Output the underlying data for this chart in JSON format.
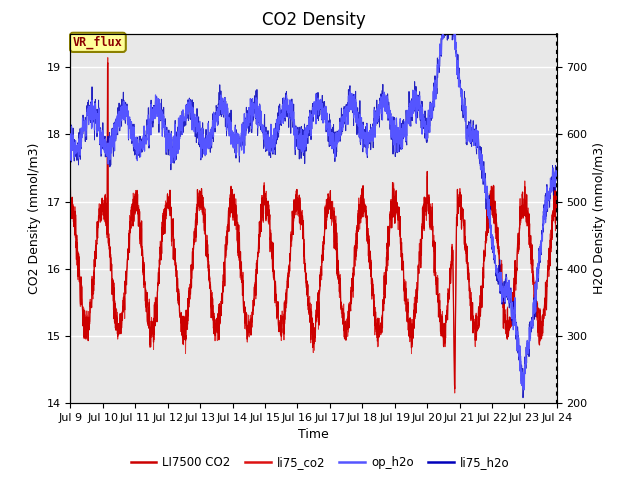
{
  "title": "CO2 Density",
  "xlabel": "Time",
  "ylabel_left": "CO2 Density (mmol/m3)",
  "ylabel_right": "H2O Density (mmol/m3)",
  "ylim_left": [
    14.0,
    19.5
  ],
  "ylim_right": [
    200,
    750
  ],
  "plot_bg_color": "#e8e8e8",
  "annotation_text": "VR_flux",
  "legend_labels": [
    "LI7500 CO2",
    "li75_co2",
    "op_h2o",
    "li75_h2o"
  ],
  "co2_color": "#cc0000",
  "h2o_color_op": "#5555ff",
  "h2o_color_li": "#0000bb",
  "x_tick_days": [
    9,
    10,
    11,
    12,
    13,
    14,
    15,
    16,
    17,
    18,
    19,
    20,
    21,
    22,
    23,
    24
  ],
  "x_tick_labels": [
    "Jul 9",
    "Jul 10",
    "Jul 11",
    "Jul 12",
    "Jul 13",
    "Jul 14",
    "Jul 15",
    "Jul 16",
    "Jul 17",
    "Jul 18",
    "Jul 19",
    "Jul 20",
    "Jul 21",
    "Jul 22",
    "Jul 23",
    "Jul 24"
  ],
  "title_fontsize": 12,
  "axis_fontsize": 9,
  "tick_fontsize": 8
}
